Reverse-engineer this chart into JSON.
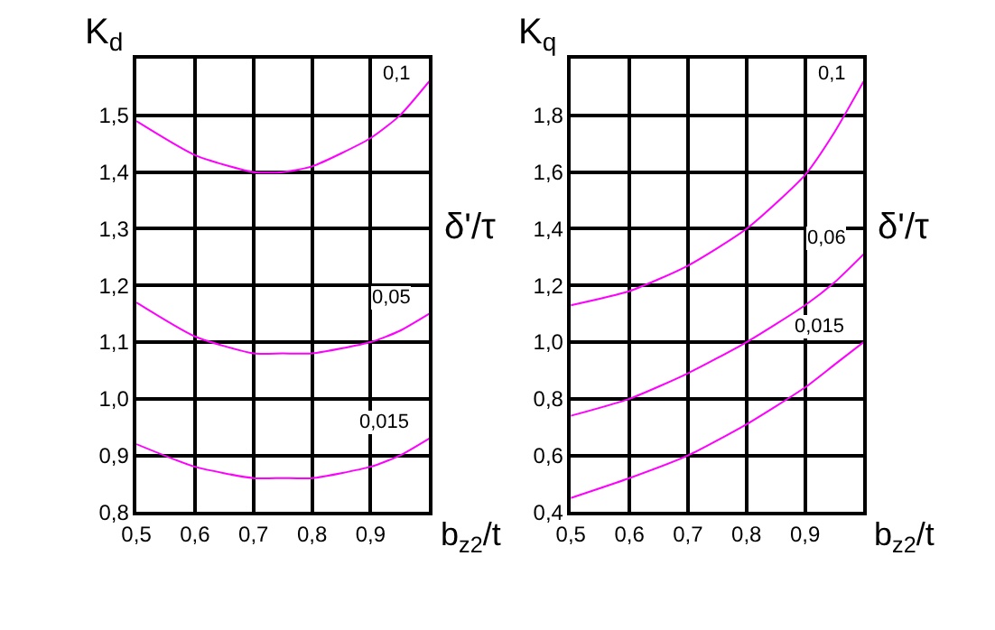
{
  "chart_data": [
    {
      "type": "line",
      "ylabel": "K$_{d}$",
      "xlabel": "b$_{z2}$/t",
      "legend_title": "δ'/τ",
      "x": [
        0.5,
        0.6,
        0.7,
        0.75,
        0.8,
        0.9,
        0.95,
        1.0
      ],
      "xlim": [
        0.5,
        1.0
      ],
      "ylim": [
        0.8,
        1.6
      ],
      "xticks": [
        {
          "value": 0.5,
          "label": "0,5"
        },
        {
          "value": 0.6,
          "label": "0,6"
        },
        {
          "value": 0.7,
          "label": "0,7"
        },
        {
          "value": 0.8,
          "label": "0,8"
        },
        {
          "value": 0.9,
          "label": "0,9"
        }
      ],
      "yticks": [
        {
          "value": 0.8,
          "label": "0,8"
        },
        {
          "value": 0.9,
          "label": "0,9"
        },
        {
          "value": 1.0,
          "label": "1,0"
        },
        {
          "value": 1.1,
          "label": "1,1"
        },
        {
          "value": 1.2,
          "label": "1,2"
        },
        {
          "value": 1.3,
          "label": "1,3"
        },
        {
          "value": 1.4,
          "label": "1,4"
        },
        {
          "value": 1.5,
          "label": "1,5"
        }
      ],
      "grid": true,
      "marker": "none",
      "line_style": "solid",
      "series": [
        {
          "name": "0,1",
          "color": "#ff00ff",
          "values": [
            1.49,
            1.43,
            1.4,
            1.4,
            1.41,
            1.46,
            1.5,
            1.56
          ]
        },
        {
          "name": "0,05",
          "color": "#ff00ff",
          "values": [
            1.17,
            1.11,
            1.08,
            1.08,
            1.08,
            1.1,
            1.12,
            1.15
          ]
        },
        {
          "name": "0,015",
          "color": "#ff00ff",
          "values": [
            0.92,
            0.88,
            0.86,
            0.86,
            0.86,
            0.88,
            0.9,
            0.93
          ]
        }
      ]
    },
    {
      "type": "line",
      "ylabel": "K$_{q}$",
      "xlabel": "b$_{z2}$/t",
      "legend_title": "δ'/τ",
      "x": [
        0.5,
        0.6,
        0.7,
        0.8,
        0.9,
        0.95,
        1.0
      ],
      "xlim": [
        0.5,
        1.0
      ],
      "ylim": [
        0.4,
        2.0
      ],
      "xticks": [
        {
          "value": 0.5,
          "label": "0,5"
        },
        {
          "value": 0.6,
          "label": "0,6"
        },
        {
          "value": 0.7,
          "label": "0,7"
        },
        {
          "value": 0.8,
          "label": "0,8"
        },
        {
          "value": 0.9,
          "label": "0,9"
        }
      ],
      "yticks": [
        {
          "value": 0.4,
          "label": "0,4"
        },
        {
          "value": 0.6,
          "label": "0,6"
        },
        {
          "value": 0.8,
          "label": "0,8"
        },
        {
          "value": 1.0,
          "label": "1,0"
        },
        {
          "value": 1.2,
          "label": "1,2"
        },
        {
          "value": 1.4,
          "label": "1,4"
        },
        {
          "value": 1.6,
          "label": "1,6"
        },
        {
          "value": 1.8,
          "label": "1,8"
        }
      ],
      "grid": true,
      "marker": "none",
      "line_style": "solid",
      "series": [
        {
          "name": "0,1",
          "color": "#ff00ff",
          "values": [
            1.13,
            1.18,
            1.27,
            1.4,
            1.59,
            1.74,
            1.92
          ]
        },
        {
          "name": "0,06",
          "color": "#ff00ff",
          "values": [
            0.74,
            0.8,
            0.89,
            1.0,
            1.13,
            1.21,
            1.31
          ]
        },
        {
          "name": "0,015",
          "color": "#ff00ff",
          "values": [
            0.45,
            0.52,
            0.6,
            0.71,
            0.84,
            0.92,
            1.0
          ]
        }
      ]
    }
  ]
}
